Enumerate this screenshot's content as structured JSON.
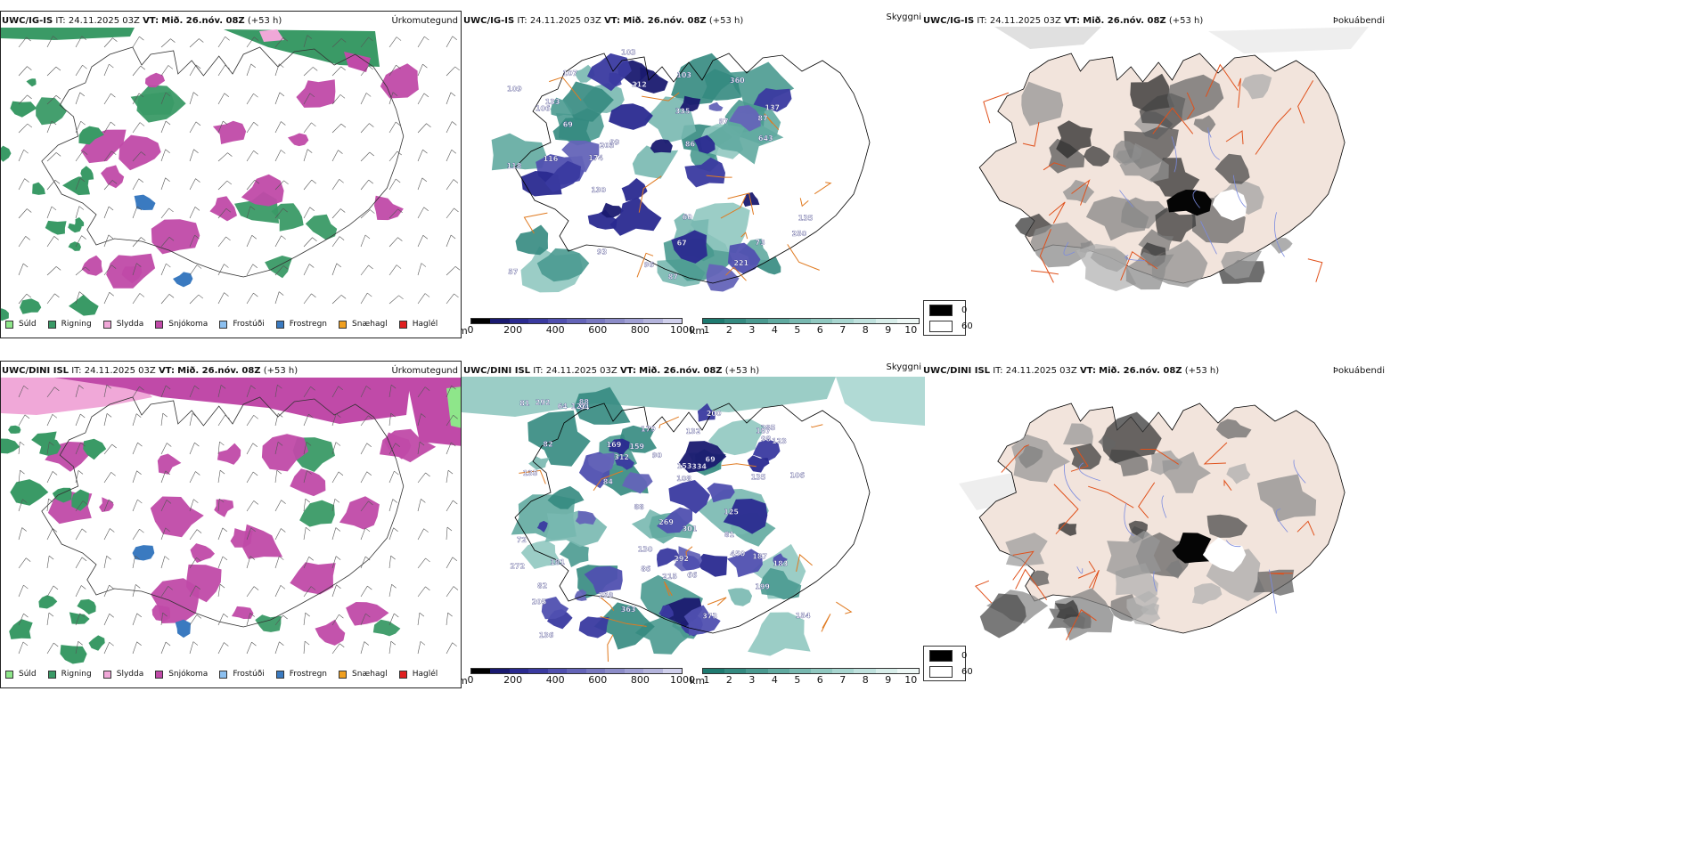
{
  "rows": [
    {
      "model": "UWC/IG-IS",
      "it_label": "IT:",
      "it_value": "24.11.2025 03Z",
      "vt_label": "VT:",
      "vt_value": "Mið. 26.nóv. 08Z",
      "lead": "(+53 h)",
      "panel_titles": [
        "Úrkomutegund",
        "Skyggni",
        "Þokuábendi"
      ]
    },
    {
      "model": "UWC/DINI ISL",
      "it_label": "IT:",
      "it_value": "24.11.2025 03Z",
      "vt_label": "VT:",
      "vt_value": "Mið. 26.nóv. 08Z",
      "lead": "(+53 h)",
      "panel_titles": [
        "Úrkomutegund",
        "Skyggni",
        "Þokuábendi"
      ]
    }
  ],
  "ptype_legend": [
    {
      "label": "Súld",
      "color": "#8ee68a"
    },
    {
      "label": "Rigning",
      "color": "#3a9a66"
    },
    {
      "label": "Slydda",
      "color": "#f0a8d8"
    },
    {
      "label": "Snjókoma",
      "color": "#c04aa8"
    },
    {
      "label": "Frostúði",
      "color": "#8cc0f0"
    },
    {
      "label": "Frostregn",
      "color": "#3a7ac0"
    },
    {
      "label": "Snæhagl",
      "color": "#f0a020"
    },
    {
      "label": "Haglél",
      "color": "#e02020"
    }
  ],
  "vis_m_bar": {
    "unit": "m",
    "ticks": [
      "0",
      "200",
      "400",
      "600",
      "800",
      "1000"
    ],
    "colors": [
      "#000000",
      "#1a1a70",
      "#2a2a90",
      "#3a3aa0",
      "#5050b0",
      "#6464b8",
      "#7878c0",
      "#8c8cc8",
      "#a0a0d4",
      "#b4b4dc",
      "#d0d0ec"
    ]
  },
  "vis_km_bar": {
    "unit": "km",
    "ticks": [
      "1",
      "2",
      "3",
      "4",
      "5",
      "6",
      "7",
      "8",
      "9",
      "10"
    ],
    "colors": [
      "#1f7a70",
      "#348a80",
      "#4a9a90",
      "#60aaa0",
      "#78b8b0",
      "#90c8c0",
      "#a8d6d0",
      "#c0e2de",
      "#d8eeea",
      "#eef8f6"
    ]
  },
  "fog_key": {
    "high": "0",
    "low": "60"
  },
  "vis_numbers_top": [
    "643",
    "335",
    "87",
    "97",
    "135",
    "109",
    "103",
    "73",
    "118",
    "360",
    "96",
    "137",
    "60",
    "69",
    "250",
    "212",
    "99",
    "86",
    "67",
    "174",
    "116",
    "103",
    "93",
    "87",
    "107",
    "221",
    "133",
    "203",
    "57",
    "130",
    "106"
  ],
  "vis_numbers_bottom": [
    "122",
    "205",
    "292",
    "215",
    "66",
    "84",
    "135",
    "153",
    "82",
    "179",
    "259",
    "450",
    "125",
    "181",
    "334",
    "272",
    "159",
    "81",
    "132",
    "86",
    "169",
    "285",
    "301",
    "107",
    "136",
    "64",
    "123",
    "200",
    "269",
    "187",
    "183",
    "106",
    "154",
    "82",
    "199",
    "69",
    "373",
    "90",
    "94",
    "98",
    "88",
    "72",
    "135",
    "88",
    "312",
    "292",
    "363",
    "108",
    "81",
    "130"
  ]
}
